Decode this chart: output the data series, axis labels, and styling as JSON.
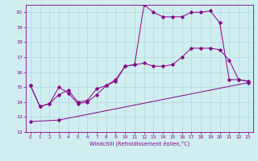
{
  "xlabel": "Windchill (Refroidissement éolien,°C)",
  "xlim": [
    -0.5,
    23.5
  ],
  "ylim": [
    12,
    20.5
  ],
  "xticks": [
    0,
    1,
    2,
    3,
    4,
    5,
    6,
    7,
    8,
    9,
    10,
    11,
    12,
    13,
    14,
    15,
    16,
    17,
    18,
    19,
    20,
    21,
    22,
    23
  ],
  "yticks": [
    12,
    13,
    14,
    15,
    16,
    17,
    18,
    19,
    20
  ],
  "background_color": "#d0eef0",
  "line_color": "#880088",
  "grid_color": "#b0d8dc",
  "line1_x": [
    0,
    1,
    2,
    3,
    4,
    5,
    6,
    7,
    8,
    9,
    10,
    11,
    12,
    13,
    14,
    15,
    16,
    17,
    18,
    19,
    20,
    21,
    22,
    23
  ],
  "line1_y": [
    15.1,
    13.7,
    13.9,
    15.0,
    14.6,
    13.9,
    14.0,
    14.5,
    15.1,
    15.5,
    16.4,
    16.5,
    20.5,
    20.0,
    19.7,
    19.7,
    19.7,
    20.0,
    20.0,
    20.1,
    19.3,
    15.5,
    15.5,
    15.4
  ],
  "line2_x": [
    0,
    1,
    2,
    3,
    4,
    5,
    6,
    7,
    8,
    9,
    10,
    11,
    12,
    13,
    14,
    15,
    16,
    17,
    18,
    19,
    20,
    21,
    22,
    23
  ],
  "line2_y": [
    15.1,
    13.7,
    13.9,
    14.5,
    14.8,
    14.0,
    14.1,
    14.9,
    15.1,
    15.4,
    16.4,
    16.5,
    16.6,
    16.4,
    16.4,
    16.5,
    17.0,
    17.6,
    17.6,
    17.6,
    17.5,
    16.8,
    15.5,
    15.4
  ],
  "line3_x": [
    0,
    3,
    23
  ],
  "line3_y": [
    12.7,
    12.8,
    15.3
  ]
}
